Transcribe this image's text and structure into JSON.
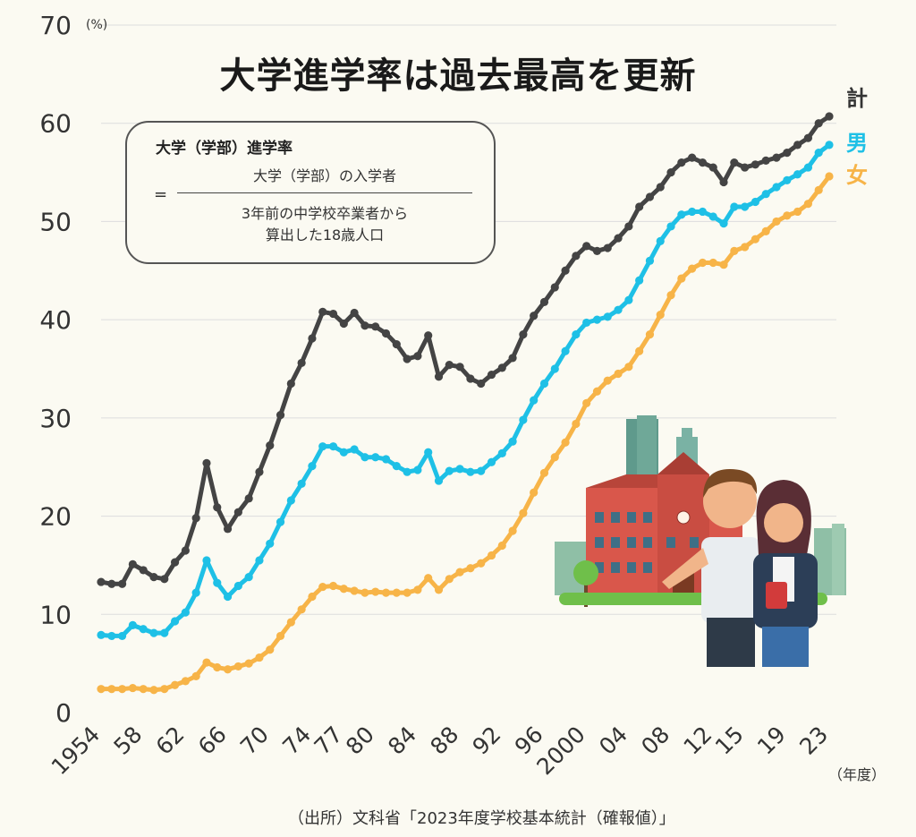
{
  "title": "大学進学率は過去最高を更新",
  "formula": {
    "heading": "大学（学部）進学率",
    "equals": "=",
    "numerator": "大学（学部）の入学者",
    "denominator_line1": "3年前の中学校卒業者から",
    "denominator_line2": "算出した18歳人口"
  },
  "legend": {
    "total": "計",
    "male": "男",
    "female": "女"
  },
  "colors": {
    "total": "#444444",
    "male": "#1ec0e6",
    "female": "#f7b448",
    "grid": "#dddddd"
  },
  "source": "（出所）文科省「2023年度学校基本統計（確報値）」",
  "illustration": "university-building-and-students",
  "chart_data": {
    "type": "line",
    "y_unit": "(%)",
    "x_unit": "（年度）",
    "ylim": [
      0,
      70
    ],
    "yticks": [
      0,
      10,
      20,
      30,
      40,
      50,
      60,
      70
    ],
    "xlim": [
      1954,
      2023
    ],
    "xtick_labels": [
      {
        "year": 1954,
        "label": "1954"
      },
      {
        "year": 1958,
        "label": "58"
      },
      {
        "year": 1962,
        "label": "62"
      },
      {
        "year": 1966,
        "label": "66"
      },
      {
        "year": 1970,
        "label": "70"
      },
      {
        "year": 1974,
        "label": "74"
      },
      {
        "year": 1977,
        "label": "77"
      },
      {
        "year": 1980,
        "label": "80"
      },
      {
        "year": 1984,
        "label": "84"
      },
      {
        "year": 1988,
        "label": "88"
      },
      {
        "year": 1992,
        "label": "92"
      },
      {
        "year": 1996,
        "label": "96"
      },
      {
        "year": 2000,
        "label": "2000"
      },
      {
        "year": 2004,
        "label": "04"
      },
      {
        "year": 2008,
        "label": "08"
      },
      {
        "year": 2012,
        "label": "12"
      },
      {
        "year": 2015,
        "label": "15"
      },
      {
        "year": 2019,
        "label": "19"
      },
      {
        "year": 2023,
        "label": "23"
      }
    ],
    "grid": true,
    "x": [
      1954,
      1955,
      1956,
      1957,
      1958,
      1959,
      1960,
      1961,
      1962,
      1963,
      1964,
      1965,
      1966,
      1967,
      1968,
      1969,
      1970,
      1971,
      1972,
      1973,
      1974,
      1975,
      1976,
      1977,
      1978,
      1979,
      1980,
      1981,
      1982,
      1983,
      1984,
      1985,
      1986,
      1987,
      1988,
      1989,
      1990,
      1991,
      1992,
      1993,
      1994,
      1995,
      1996,
      1997,
      1998,
      1999,
      2000,
      2001,
      2002,
      2003,
      2004,
      2005,
      2006,
      2007,
      2008,
      2009,
      2010,
      2011,
      2012,
      2013,
      2014,
      2015,
      2016,
      2017,
      2018,
      2019,
      2020,
      2021,
      2022,
      2023
    ],
    "series": [
      {
        "name": "計",
        "color": "#444444",
        "values": [
          13.3,
          13.1,
          13.1,
          15.1,
          14.5,
          13.8,
          13.6,
          15.3,
          16.5,
          19.8,
          25.4,
          20.9,
          18.7,
          20.4,
          21.8,
          24.5,
          27.2,
          30.3,
          33.5,
          35.6,
          38.1,
          40.8,
          40.6,
          39.6,
          40.7,
          39.4,
          39.3,
          38.6,
          37.5,
          36.0,
          36.3,
          38.4,
          34.2,
          35.4,
          35.2,
          34.0,
          33.5,
          34.4,
          35.1,
          36.1,
          38.5,
          40.4,
          41.8,
          43.3,
          45.0,
          46.5,
          47.5,
          47.0,
          47.3,
          48.3,
          49.5,
          51.5,
          52.5,
          53.5,
          55.0,
          56.0,
          56.5,
          56.0,
          55.5,
          54.0,
          56.0,
          55.5,
          55.8,
          56.2,
          56.5,
          57.0,
          57.8,
          58.5,
          60.0,
          60.7
        ]
      },
      {
        "name": "男",
        "color": "#1ec0e6",
        "values": [
          7.9,
          7.8,
          7.8,
          8.9,
          8.5,
          8.1,
          8.1,
          9.3,
          10.2,
          12.2,
          15.5,
          13.2,
          11.8,
          12.9,
          13.8,
          15.5,
          17.2,
          19.4,
          21.6,
          23.3,
          25.1,
          27.1,
          27.1,
          26.5,
          26.8,
          26.0,
          26.0,
          25.8,
          25.1,
          24.5,
          24.7,
          26.5,
          23.6,
          24.6,
          24.8,
          24.5,
          24.6,
          25.5,
          26.4,
          27.6,
          29.8,
          31.8,
          33.5,
          35.0,
          36.8,
          38.5,
          39.7,
          40.0,
          40.3,
          41.0,
          42.0,
          44.0,
          46.0,
          48.0,
          49.5,
          50.7,
          51.0,
          51.0,
          50.5,
          49.8,
          51.5,
          51.5,
          52.0,
          52.8,
          53.5,
          54.2,
          54.8,
          55.5,
          57.0,
          57.8
        ]
      },
      {
        "name": "女",
        "color": "#f7b448",
        "values": [
          2.4,
          2.4,
          2.4,
          2.5,
          2.4,
          2.3,
          2.4,
          2.8,
          3.2,
          3.7,
          5.1,
          4.6,
          4.4,
          4.7,
          5.0,
          5.6,
          6.4,
          7.8,
          9.2,
          10.5,
          11.8,
          12.8,
          12.9,
          12.6,
          12.4,
          12.2,
          12.3,
          12.2,
          12.2,
          12.2,
          12.5,
          13.7,
          12.5,
          13.6,
          14.3,
          14.7,
          15.2,
          16.0,
          17.0,
          18.5,
          20.3,
          22.4,
          24.4,
          26.0,
          27.5,
          29.4,
          31.5,
          32.7,
          33.8,
          34.5,
          35.2,
          36.8,
          38.5,
          40.5,
          42.5,
          44.2,
          45.2,
          45.8,
          45.8,
          45.6,
          47.0,
          47.4,
          48.2,
          49.0,
          50.0,
          50.6,
          51.0,
          51.8,
          53.2,
          54.6
        ]
      }
    ]
  }
}
